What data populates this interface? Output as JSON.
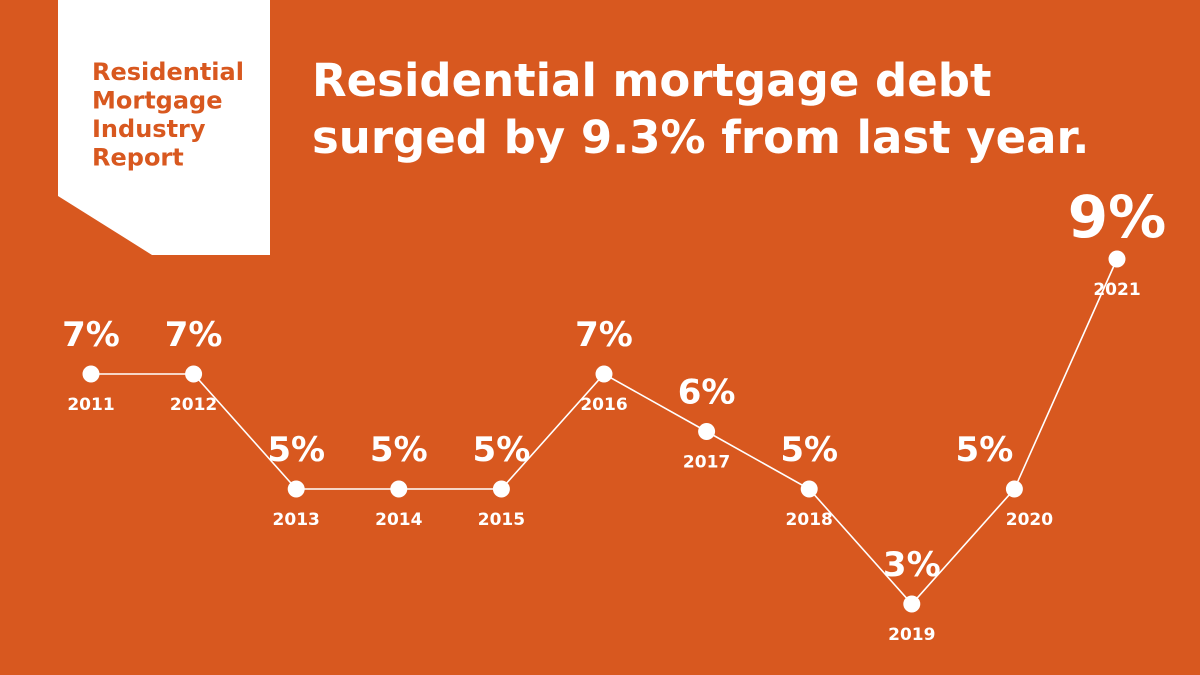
{
  "chart_data": {
    "type": "line",
    "report_label": [
      "Residential",
      "Mortgage",
      "Industry",
      "Report"
    ],
    "title": [
      "Residential mortgage debt",
      "surged by 9.3% from last year."
    ],
    "categories": [
      "2011",
      "2012",
      "2013",
      "2014",
      "2015",
      "2016",
      "2017",
      "2018",
      "2019",
      "2020",
      "2021"
    ],
    "values": [
      7,
      7,
      5,
      5,
      5,
      7,
      6,
      5,
      3,
      5,
      9
    ],
    "value_labels": [
      "7%",
      "7%",
      "5%",
      "5%",
      "5%",
      "7%",
      "6%",
      "5%",
      "3%",
      "5%",
      "9%"
    ],
    "color": "#ffffff",
    "background": "#d8581f"
  }
}
